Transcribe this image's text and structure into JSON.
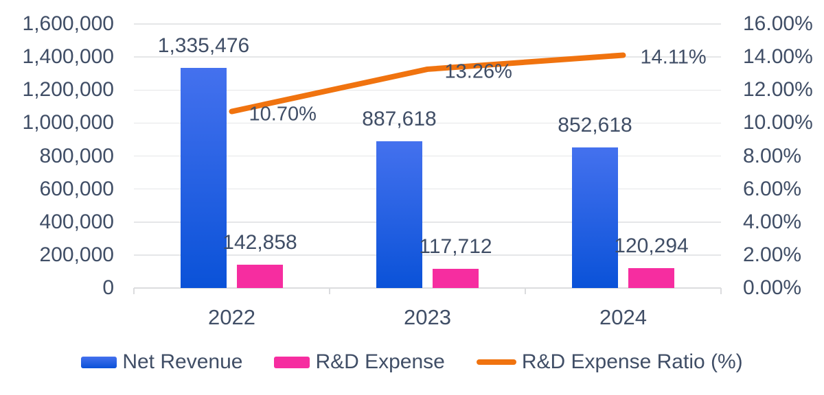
{
  "chart_data": {
    "type": "combo",
    "title": "",
    "categories": [
      "2022",
      "2023",
      "2024"
    ],
    "series": [
      {
        "name": "Net Revenue",
        "type": "bar",
        "axis": "left",
        "values": [
          1335476,
          887618,
          852618
        ],
        "labels": [
          "1,335,476",
          "887,618",
          "852,618"
        ],
        "color_top": "#4471EE",
        "color_bottom": "#0A52D8"
      },
      {
        "name": "R&D Expense",
        "type": "bar",
        "axis": "left",
        "values": [
          142858,
          117712,
          120294
        ],
        "labels": [
          "142,858",
          "117,712",
          "120,294"
        ],
        "color": "#F62DA0"
      },
      {
        "name": "R&D Expense Ratio (%)",
        "type": "line",
        "axis": "right",
        "values": [
          10.7,
          13.26,
          14.11
        ],
        "labels": [
          "10.70%",
          "13.26%",
          "14.11%"
        ],
        "color": "#F0730F"
      }
    ],
    "left_axis": {
      "min": 0,
      "max": 1600000,
      "step": 200000,
      "tick_labels": [
        "0",
        "200,000",
        "400,000",
        "600,000",
        "800,000",
        "1,000,000",
        "1,200,000",
        "1,400,000",
        "1,600,000"
      ]
    },
    "right_axis": {
      "min": 0,
      "max": 16,
      "step": 2,
      "tick_labels": [
        "0.00%",
        "2.00%",
        "4.00%",
        "6.00%",
        "8.00%",
        "10.00%",
        "12.00%",
        "14.00%",
        "16.00%"
      ]
    },
    "grid": true,
    "legend_position": "bottom",
    "colors": {
      "text": "#404E66",
      "gridline": "#E5E6E8",
      "axis": "#DBDCDE",
      "background": "#FFFFFF"
    }
  }
}
